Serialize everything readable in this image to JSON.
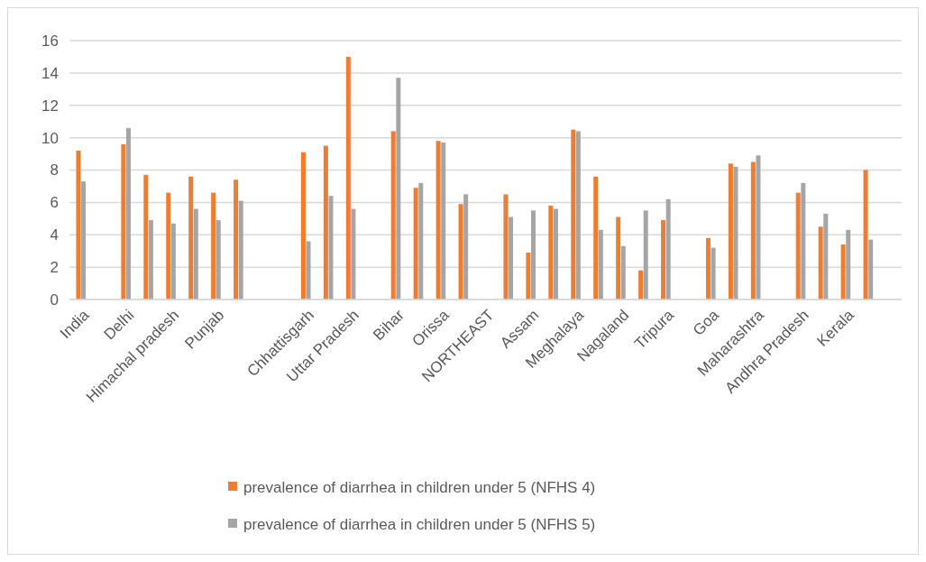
{
  "chart_data": {
    "type": "bar",
    "categories": [
      "India",
      null,
      "Delhi",
      null,
      "Himachal pradesh",
      null,
      "Punjab",
      null,
      null,
      null,
      "Chhattisgarh",
      null,
      "Uttar Pradesh",
      null,
      "Bihar",
      null,
      "Orissa",
      null,
      "NORTHEAST",
      null,
      "Assam",
      null,
      "Meghalaya",
      null,
      "Nagaland",
      null,
      "Tripura",
      null,
      "Goa",
      null,
      "Maharashtra",
      null,
      "Andhra Pradesh",
      null,
      "Kerala",
      null,
      null
    ],
    "series": [
      {
        "name": "prevalence of diarrhea in children under 5 (NFHS 4)",
        "color": "#ed7d31",
        "values": [
          9.2,
          null,
          9.6,
          7.7,
          6.6,
          7.6,
          6.6,
          7.4,
          null,
          null,
          9.1,
          9.5,
          15.0,
          null,
          10.4,
          6.9,
          9.8,
          5.9,
          null,
          6.5,
          2.9,
          5.8,
          10.5,
          7.6,
          5.1,
          1.8,
          4.9,
          null,
          3.8,
          8.4,
          8.5,
          null,
          6.6,
          4.5,
          3.4,
          8.0,
          null
        ]
      },
      {
        "name": "prevalence of diarrhea in children under 5 (NFHS 5)",
        "color": "#a5a5a5",
        "values": [
          7.3,
          null,
          10.6,
          4.9,
          4.7,
          5.6,
          4.9,
          6.1,
          null,
          null,
          3.6,
          6.4,
          5.6,
          null,
          13.7,
          7.2,
          9.7,
          6.5,
          null,
          5.1,
          5.5,
          5.6,
          10.4,
          4.3,
          3.3,
          5.5,
          6.2,
          null,
          3.2,
          8.2,
          8.9,
          null,
          7.2,
          5.3,
          4.3,
          3.7,
          null
        ]
      }
    ],
    "ylim": [
      0,
      16
    ],
    "yticks": [
      0,
      2,
      4,
      6,
      8,
      10,
      12,
      14,
      16
    ],
    "grid": "y",
    "legend": "bottom"
  }
}
